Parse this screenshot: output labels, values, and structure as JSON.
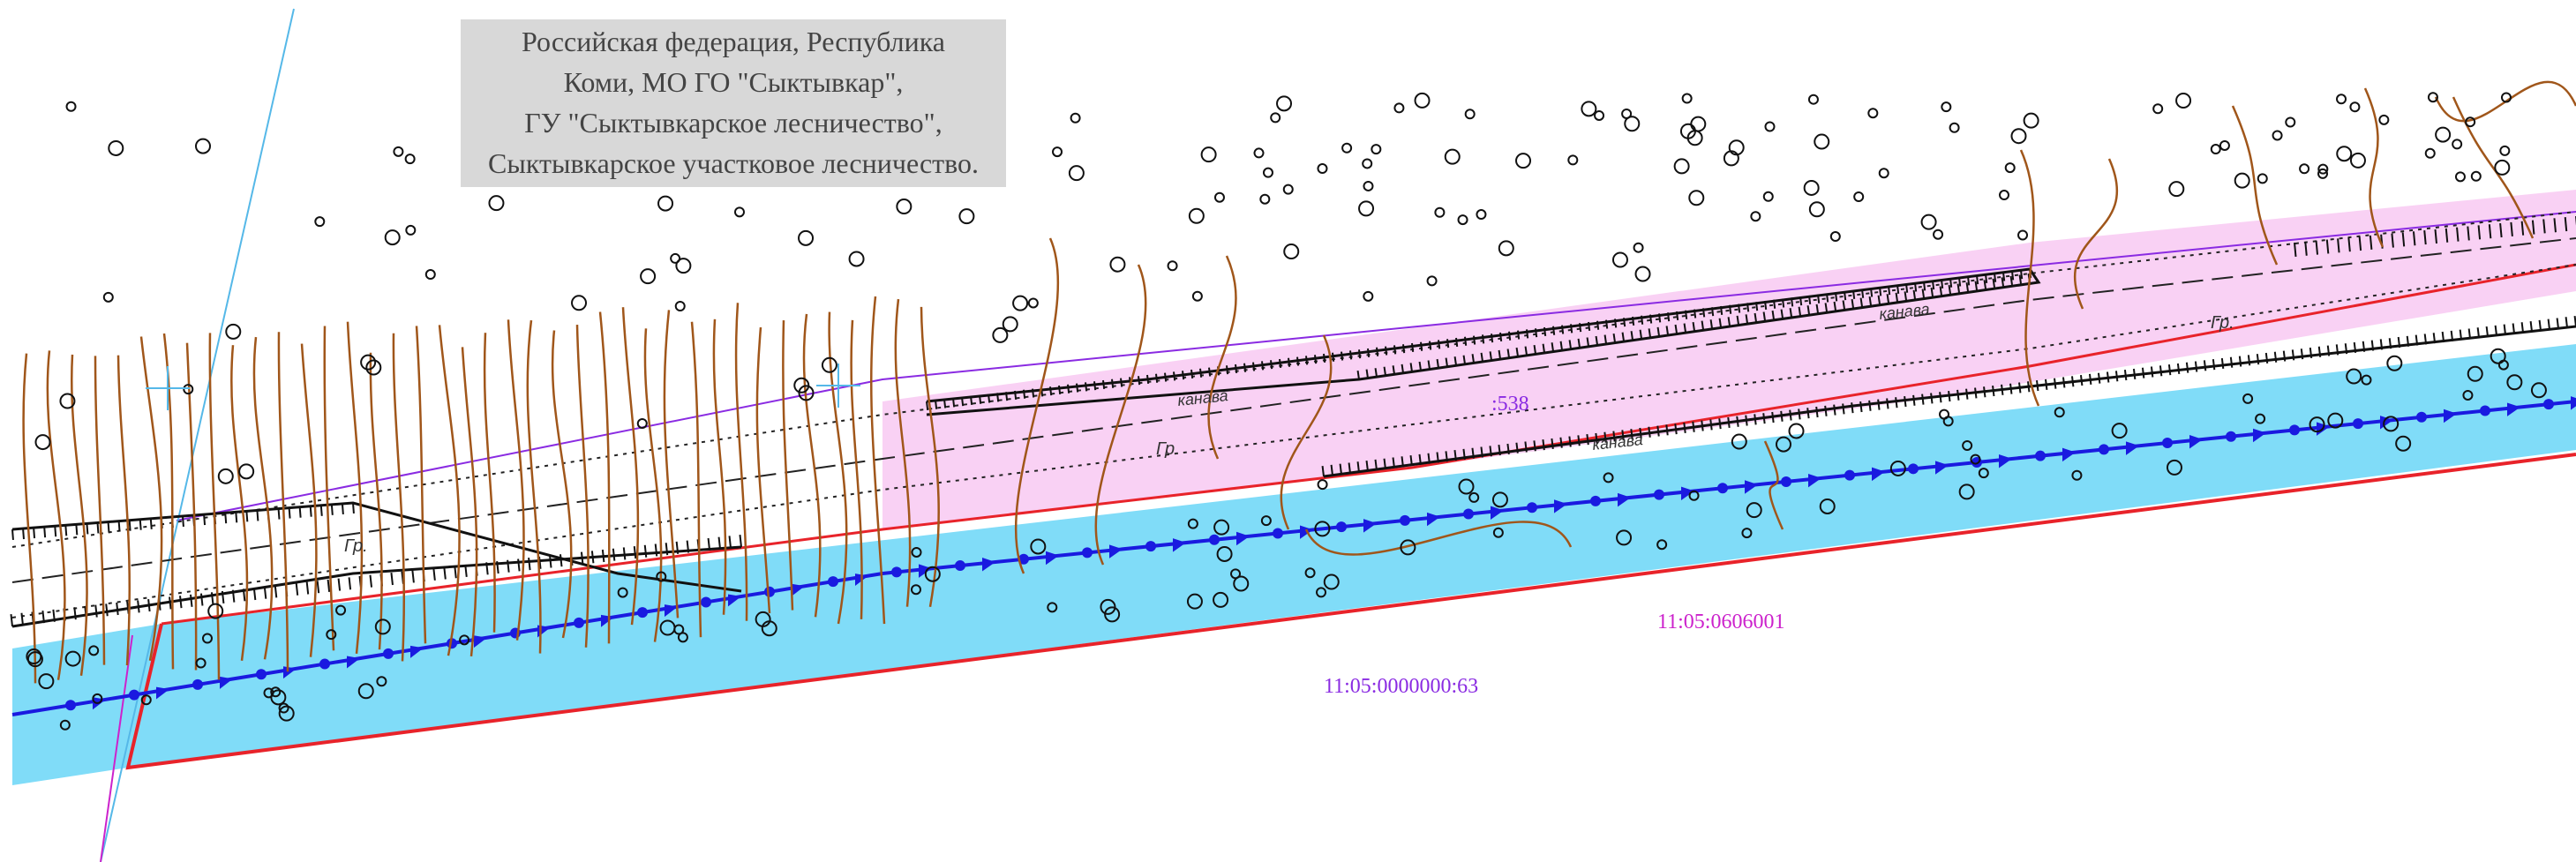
{
  "info_box": {
    "lines": [
      "Российская федерация, Республика",
      "Коми, МО ГО \"Сыктывкар\",",
      "ГУ \"Сыктывкарское лесничество\",",
      "Сыктывкарское участковое лесничество."
    ]
  },
  "labels": {
    "quarter_number": ":538",
    "cadastral_block": "11:05:0606001",
    "cadastral_parcel": "11:05:0000000:63",
    "ground_1": "Гр.",
    "ground_2": "Гр.",
    "ground_3": "Гр.",
    "ditch_1": "канава",
    "ditch_2": "канава",
    "ditch_3": "канава"
  },
  "colors": {
    "corridor_fill": "#80dcf8",
    "road_fill": "#f9d1f4",
    "boundary_red": "#e8232a",
    "pipeline_blue": "#1a1ae0",
    "contour_brown": "#a0561a",
    "label_magenta": "#cc22cc",
    "label_purple": "#8a2be2",
    "grid_cyan": "#55b8e8"
  }
}
